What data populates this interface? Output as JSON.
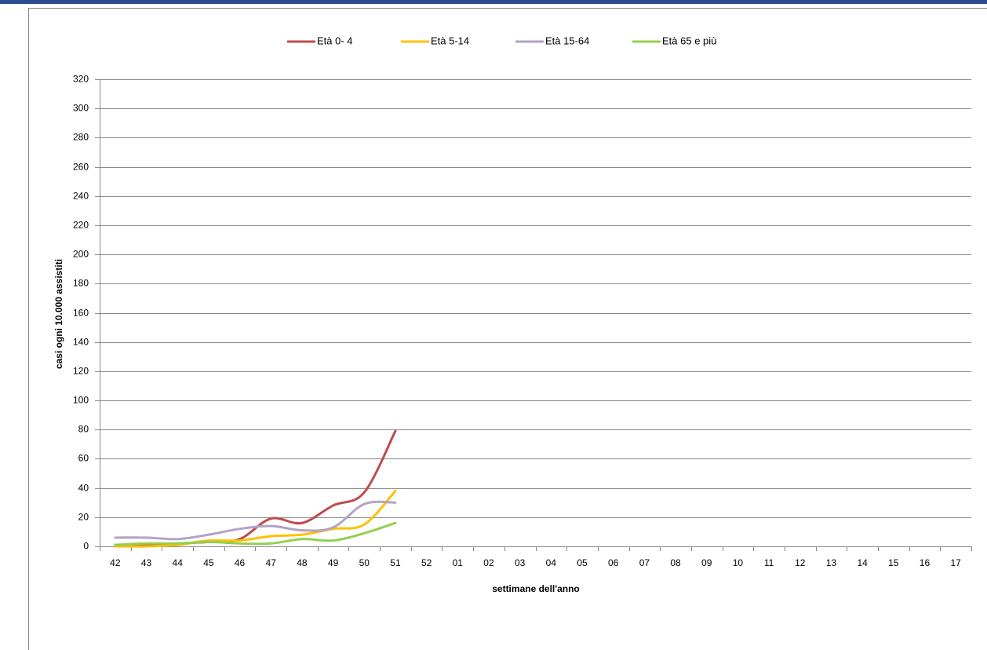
{
  "chart_data": {
    "type": "line",
    "y_axis_label": "casi ogni 10.000 assistiti",
    "x_axis_label": "settimane dell'anno",
    "categories": [
      "42",
      "43",
      "44",
      "45",
      "46",
      "47",
      "48",
      "49",
      "50",
      "51",
      "52",
      "01",
      "02",
      "03",
      "04",
      "05",
      "06",
      "07",
      "08",
      "09",
      "10",
      "11",
      "12",
      "13",
      "14",
      "15",
      "16",
      "17"
    ],
    "series": [
      {
        "name": "Età  0- 4",
        "color": "#be4b48",
        "values": [
          1,
          1,
          2,
          3,
          5,
          19,
          16,
          28,
          37,
          79,
          null,
          null,
          null,
          null,
          null,
          null,
          null,
          null,
          null,
          null,
          null,
          null,
          null,
          null,
          null,
          null,
          null,
          null
        ]
      },
      {
        "name": "Età  5-14",
        "color": "#ffc000",
        "values": [
          0,
          0,
          1,
          4,
          4,
          7,
          8,
          12,
          15,
          38,
          null,
          null,
          null,
          null,
          null,
          null,
          null,
          null,
          null,
          null,
          null,
          null,
          null,
          null,
          null,
          null,
          null,
          null
        ]
      },
      {
        "name": "Età 15-64",
        "color": "#b3a2c7",
        "values": [
          6,
          6,
          5,
          8,
          12,
          14,
          11,
          13,
          29,
          30,
          null,
          null,
          null,
          null,
          null,
          null,
          null,
          null,
          null,
          null,
          null,
          null,
          null,
          null,
          null,
          null,
          null,
          null
        ]
      },
      {
        "name": "Età 65 e più",
        "color": "#92d050",
        "values": [
          1,
          2,
          2,
          3,
          2,
          2,
          5,
          4,
          9,
          16,
          null,
          null,
          null,
          null,
          null,
          null,
          null,
          null,
          null,
          null,
          null,
          null,
          null,
          null,
          null,
          null,
          null,
          null
        ]
      }
    ],
    "ylim": [
      0,
      320
    ],
    "yticks": [
      0,
      20,
      40,
      60,
      80,
      100,
      120,
      140,
      160,
      180,
      200,
      220,
      240,
      260,
      280,
      300,
      320
    ],
    "grid": true
  }
}
